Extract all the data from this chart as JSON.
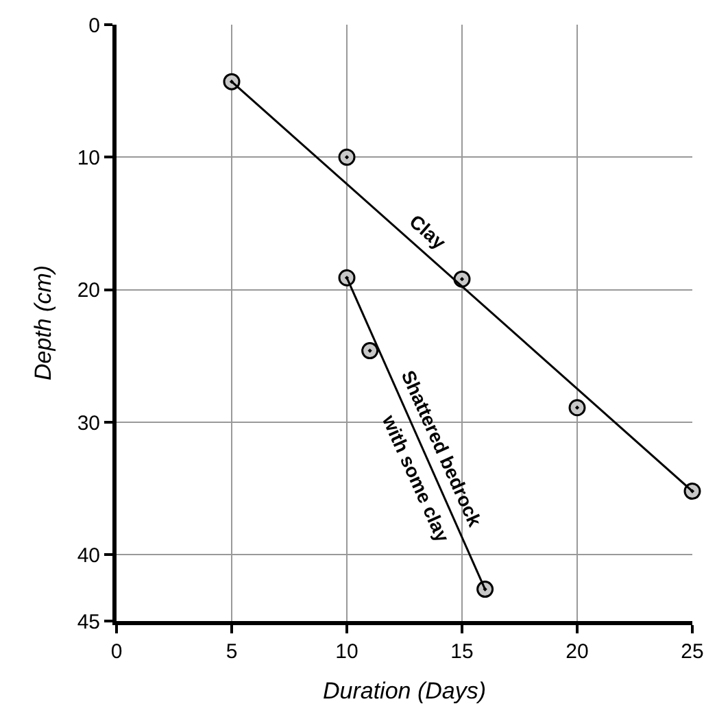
{
  "chart_data": {
    "type": "scatter",
    "xlabel": "Duration (Days)",
    "ylabel": "Depth (cm)",
    "xlim": [
      0,
      25
    ],
    "xticks": [
      0,
      5,
      10,
      15,
      20,
      25
    ],
    "ylim": [
      45,
      0
    ],
    "yticks": [
      0,
      10,
      20,
      30,
      40,
      45
    ],
    "grid": true,
    "marker": "circle",
    "series": [
      {
        "color": "#000000",
        "x": [
          5,
          10,
          15,
          20,
          25
        ],
        "values": [
          4.3,
          10,
          19.2,
          28.9,
          35.2
        ]
      },
      {
        "type": "line",
        "marker": "none",
        "color": "#000000",
        "x": [
          5,
          25
        ],
        "values": [
          4.3,
          35.2
        ]
      },
      {
        "color": "#000000",
        "x": [
          10,
          11,
          16
        ],
        "values": [
          19.1,
          24.6,
          42.6
        ]
      },
      {
        "type": "line",
        "marker": "none",
        "color": "#000000",
        "x": [
          10,
          16
        ],
        "values": [
          19.1,
          42.6
        ]
      }
    ],
    "annotations": [
      "Clay",
      "Shattered bedrock",
      "with some clay"
    ]
  }
}
